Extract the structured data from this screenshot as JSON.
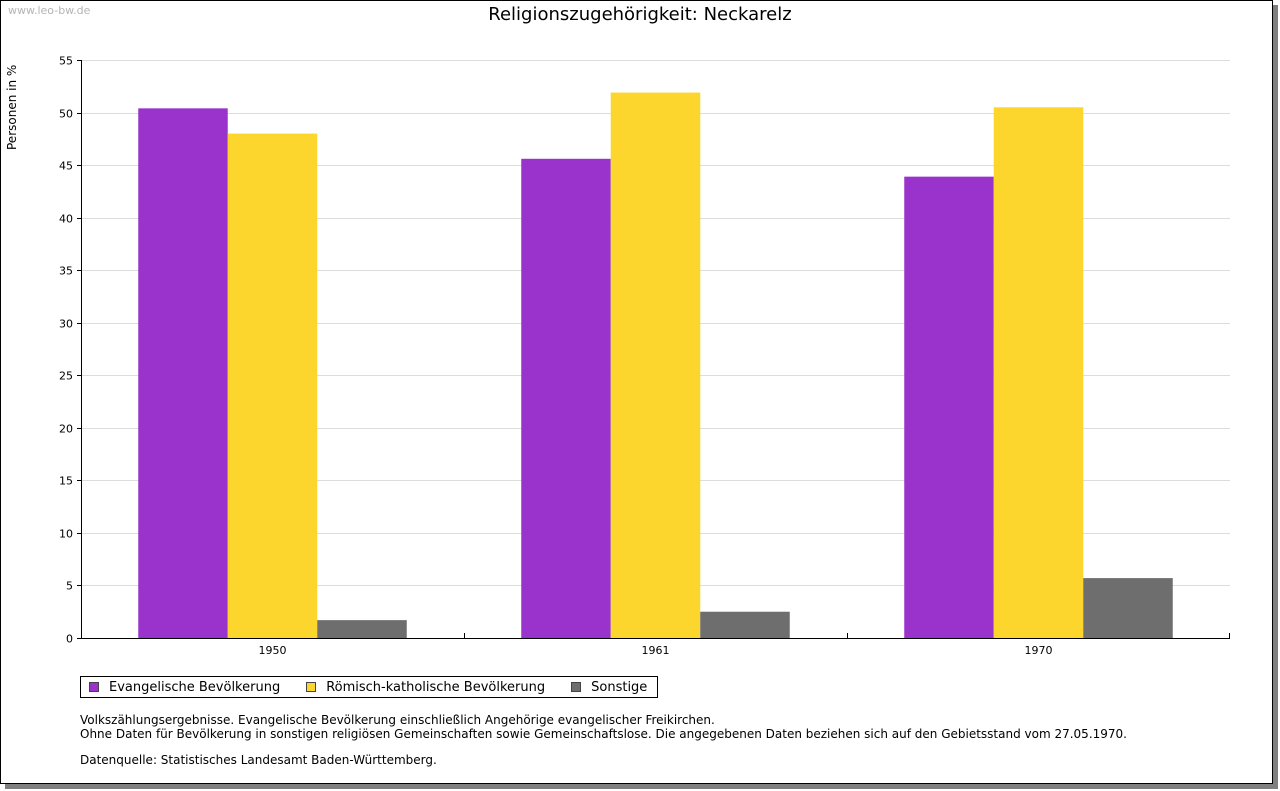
{
  "watermark": "www.leo-bw.de",
  "chart_data": {
    "type": "bar",
    "title": "Religionszugehörigkeit: Neckarelz",
    "xlabel": "",
    "ylabel": "Personen in %",
    "ylim": [
      0,
      55
    ],
    "yticks": [
      0,
      5,
      10,
      15,
      20,
      25,
      30,
      35,
      40,
      45,
      50,
      55
    ],
    "grid": true,
    "legend_position": "bottom-left",
    "categories": [
      "1950",
      "1961",
      "1970"
    ],
    "series": [
      {
        "name": "Evangelische Bevölkerung",
        "color": "#9933cc",
        "values": [
          50.4,
          45.6,
          43.9
        ]
      },
      {
        "name": "Römisch-katholische Bevölkerung",
        "color": "#fcd62c",
        "values": [
          48.0,
          51.9,
          50.5
        ]
      },
      {
        "name": "Sonstige",
        "color": "#6e6e6e",
        "values": [
          1.7,
          2.5,
          5.7
        ]
      }
    ]
  },
  "notes": {
    "line1": "Volkszählungsergebnisse. Evangelische Bevölkerung einschließlich Angehörige evangelischer Freikirchen.",
    "line2": "Ohne Daten für Bevölkerung in sonstigen religiösen Gemeinschaften sowie Gemeinschaftslose. Die angegebenen Daten beziehen sich auf den Gebietsstand vom 27.05.1970.",
    "source": "Datenquelle: Statistisches Landesamt Baden-Württemberg."
  }
}
